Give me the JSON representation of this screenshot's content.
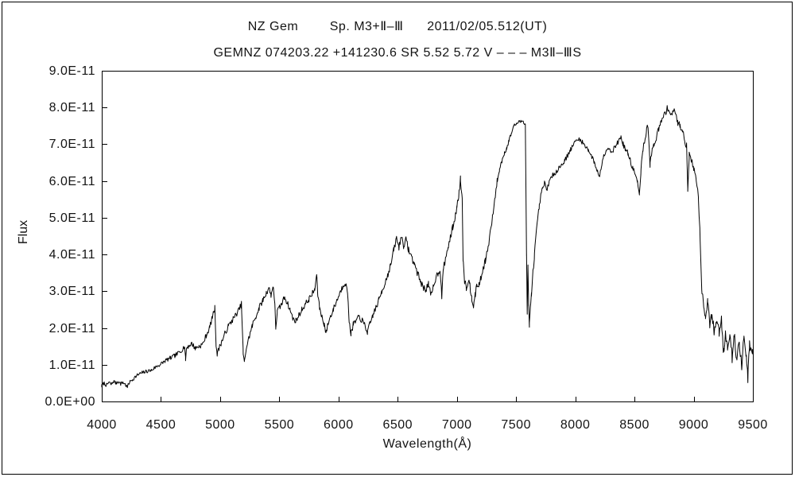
{
  "header": {
    "title_line1": "NZ Gem        Sp. M3+Ⅱ–Ⅲ      2011/02/05.512(UT)",
    "title_line2": "GEMNZ 074203.22 +141230.6 SR 5.52 5.72 V – – – M3Ⅱ–ⅢS"
  },
  "chart_data": {
    "type": "line",
    "title": "NZ Gem  Sp. M3+II-III  2011/02/05.512(UT)",
    "subtitle": "GEMNZ 074203.22 +141230.6 SR 5.52 5.72 V --- M3II-IIIS",
    "xlabel": "Wavelength(Å)",
    "ylabel": "Flux",
    "xlim": [
      4000,
      9500
    ],
    "ylim": [
      0,
      9e-11
    ],
    "grid": false,
    "legend": "none",
    "x_tick_values": [
      4000,
      4500,
      5000,
      5500,
      6000,
      6500,
      7000,
      7500,
      8000,
      8500,
      9000,
      9500
    ],
    "x_tick_labels": [
      "4000",
      "4500",
      "5000",
      "5500",
      "6000",
      "6500",
      "7000",
      "7500",
      "8000",
      "8500",
      "9000",
      "9500"
    ],
    "y_tick_values": [
      0,
      1e-11,
      2e-11,
      3e-11,
      4e-11,
      5e-11,
      6e-11,
      7e-11,
      8e-11,
      9e-11
    ],
    "y_tick_labels": [
      "0.0E+00",
      "1.0E-11",
      "2.0E-11",
      "3.0E-11",
      "4.0E-11",
      "5.0E-11",
      "6.0E-11",
      "7.0E-11",
      "8.0E-11",
      "9.0E-11"
    ],
    "flux_unit": 1e-11,
    "line_color": "#000000",
    "anchors": [
      [
        4000,
        0.42
      ],
      [
        4020,
        0.5
      ],
      [
        4040,
        0.44
      ],
      [
        4060,
        0.52
      ],
      [
        4080,
        0.46
      ],
      [
        4100,
        0.55
      ],
      [
        4120,
        0.5
      ],
      [
        4140,
        0.55
      ],
      [
        4160,
        0.48
      ],
      [
        4180,
        0.52
      ],
      [
        4200,
        0.46
      ],
      [
        4215,
        0.38
      ],
      [
        4230,
        0.5
      ],
      [
        4260,
        0.6
      ],
      [
        4300,
        0.72
      ],
      [
        4340,
        0.78
      ],
      [
        4380,
        0.82
      ],
      [
        4420,
        0.85
      ],
      [
        4460,
        0.95
      ],
      [
        4500,
        1.02
      ],
      [
        4540,
        1.12
      ],
      [
        4580,
        1.18
      ],
      [
        4620,
        1.25
      ],
      [
        4660,
        1.35
      ],
      [
        4700,
        1.5
      ],
      [
        4708,
        1.15
      ],
      [
        4716,
        1.45
      ],
      [
        4730,
        1.5
      ],
      [
        4760,
        1.58
      ],
      [
        4790,
        1.45
      ],
      [
        4820,
        1.5
      ],
      [
        4850,
        1.55
      ],
      [
        4880,
        1.78
      ],
      [
        4910,
        2.0
      ],
      [
        4935,
        2.3
      ],
      [
        4955,
        2.55
      ],
      [
        4965,
        1.6
      ],
      [
        4975,
        1.28
      ],
      [
        4990,
        1.45
      ],
      [
        5010,
        1.6
      ],
      [
        5040,
        1.85
      ],
      [
        5070,
        2.05
      ],
      [
        5100,
        2.2
      ],
      [
        5130,
        2.35
      ],
      [
        5160,
        2.5
      ],
      [
        5180,
        2.65
      ],
      [
        5195,
        1.3
      ],
      [
        5205,
        1.05
      ],
      [
        5220,
        1.45
      ],
      [
        5245,
        1.75
      ],
      [
        5270,
        2.05
      ],
      [
        5300,
        2.3
      ],
      [
        5330,
        2.55
      ],
      [
        5360,
        2.75
      ],
      [
        5390,
        2.95
      ],
      [
        5410,
        3.1
      ],
      [
        5430,
        2.9
      ],
      [
        5450,
        3.15
      ],
      [
        5462,
        2.6
      ],
      [
        5470,
        2.0
      ],
      [
        5482,
        2.45
      ],
      [
        5500,
        2.55
      ],
      [
        5520,
        2.65
      ],
      [
        5545,
        2.85
      ],
      [
        5565,
        2.7
      ],
      [
        5590,
        2.5
      ],
      [
        5615,
        2.25
      ],
      [
        5640,
        2.2
      ],
      [
        5665,
        2.35
      ],
      [
        5690,
        2.5
      ],
      [
        5720,
        2.65
      ],
      [
        5750,
        2.78
      ],
      [
        5780,
        2.95
      ],
      [
        5800,
        3.05
      ],
      [
        5815,
        3.45
      ],
      [
        5825,
        2.9
      ],
      [
        5840,
        2.55
      ],
      [
        5860,
        2.3
      ],
      [
        5880,
        2.1
      ],
      [
        5895,
        1.86
      ],
      [
        5910,
        2.1
      ],
      [
        5930,
        2.3
      ],
      [
        5955,
        2.5
      ],
      [
        5980,
        2.7
      ],
      [
        6005,
        2.9
      ],
      [
        6030,
        3.1
      ],
      [
        6055,
        3.25
      ],
      [
        6075,
        3.0
      ],
      [
        6090,
        2.2
      ],
      [
        6105,
        1.85
      ],
      [
        6125,
        2.1
      ],
      [
        6150,
        2.2
      ],
      [
        6175,
        2.3
      ],
      [
        6200,
        2.2
      ],
      [
        6225,
        2.05
      ],
      [
        6245,
        1.88
      ],
      [
        6265,
        2.1
      ],
      [
        6290,
        2.35
      ],
      [
        6315,
        2.55
      ],
      [
        6340,
        2.75
      ],
      [
        6365,
        3.0
      ],
      [
        6390,
        3.2
      ],
      [
        6415,
        3.45
      ],
      [
        6440,
        3.7
      ],
      [
        6465,
        4.1
      ],
      [
        6490,
        4.45
      ],
      [
        6510,
        4.2
      ],
      [
        6530,
        4.5
      ],
      [
        6550,
        4.25
      ],
      [
        6570,
        4.4
      ],
      [
        6590,
        4.15
      ],
      [
        6615,
        3.95
      ],
      [
        6640,
        3.75
      ],
      [
        6665,
        3.5
      ],
      [
        6690,
        3.3
      ],
      [
        6715,
        3.1
      ],
      [
        6735,
        3.05
      ],
      [
        6760,
        3.2
      ],
      [
        6780,
        2.85
      ],
      [
        6800,
        3.1
      ],
      [
        6820,
        3.35
      ],
      [
        6840,
        3.5
      ],
      [
        6858,
        3.6
      ],
      [
        6872,
        2.85
      ],
      [
        6885,
        3.6
      ],
      [
        6905,
        3.9
      ],
      [
        6925,
        4.2
      ],
      [
        6945,
        4.45
      ],
      [
        6965,
        4.75
      ],
      [
        6985,
        5.0
      ],
      [
        7000,
        5.3
      ],
      [
        7015,
        5.6
      ],
      [
        7030,
        6.05
      ],
      [
        7045,
        5.5
      ],
      [
        7052,
        3.9
      ],
      [
        7065,
        3.3
      ],
      [
        7080,
        3.1
      ],
      [
        7095,
        3.3
      ],
      [
        7110,
        3.15
      ],
      [
        7125,
        2.85
      ],
      [
        7140,
        2.65
      ],
      [
        7155,
        2.95
      ],
      [
        7170,
        3.1
      ],
      [
        7185,
        3.2
      ],
      [
        7200,
        3.3
      ],
      [
        7220,
        3.6
      ],
      [
        7240,
        3.85
      ],
      [
        7260,
        4.1
      ],
      [
        7280,
        4.55
      ],
      [
        7300,
        5.0
      ],
      [
        7320,
        5.5
      ],
      [
        7340,
        6.0
      ],
      [
        7360,
        6.3
      ],
      [
        7380,
        6.55
      ],
      [
        7400,
        6.75
      ],
      [
        7420,
        6.9
      ],
      [
        7440,
        7.1
      ],
      [
        7460,
        7.3
      ],
      [
        7480,
        7.5
      ],
      [
        7500,
        7.55
      ],
      [
        7520,
        7.6
      ],
      [
        7540,
        7.62
      ],
      [
        7560,
        7.65
      ],
      [
        7578,
        7.55
      ],
      [
        7588,
        4.0
      ],
      [
        7594,
        2.4
      ],
      [
        7600,
        3.7
      ],
      [
        7606,
        2.6
      ],
      [
        7612,
        2.1
      ],
      [
        7620,
        2.5
      ],
      [
        7630,
        2.9
      ],
      [
        7642,
        3.5
      ],
      [
        7655,
        4.0
      ],
      [
        7668,
        4.5
      ],
      [
        7682,
        4.9
      ],
      [
        7695,
        5.3
      ],
      [
        7710,
        5.6
      ],
      [
        7725,
        5.8
      ],
      [
        7740,
        5.95
      ],
      [
        7755,
        5.75
      ],
      [
        7770,
        5.9
      ],
      [
        7790,
        6.05
      ],
      [
        7810,
        6.15
      ],
      [
        7835,
        6.25
      ],
      [
        7860,
        6.35
      ],
      [
        7885,
        6.45
      ],
      [
        7910,
        6.55
      ],
      [
        7935,
        6.7
      ],
      [
        7960,
        6.85
      ],
      [
        7985,
        7.0
      ],
      [
        8010,
        7.1
      ],
      [
        8035,
        7.15
      ],
      [
        8060,
        7.05
      ],
      [
        8085,
        6.95
      ],
      [
        8110,
        6.85
      ],
      [
        8135,
        6.7
      ],
      [
        8160,
        6.5
      ],
      [
        8185,
        6.3
      ],
      [
        8205,
        6.1
      ],
      [
        8220,
        6.4
      ],
      [
        8240,
        6.7
      ],
      [
        8260,
        6.85
      ],
      [
        8280,
        6.9
      ],
      [
        8300,
        6.8
      ],
      [
        8320,
        6.85
      ],
      [
        8340,
        6.95
      ],
      [
        8360,
        7.05
      ],
      [
        8385,
        7.2
      ],
      [
        8405,
        7.0
      ],
      [
        8425,
        6.85
      ],
      [
        8445,
        6.75
      ],
      [
        8465,
        6.55
      ],
      [
        8485,
        6.35
      ],
      [
        8505,
        6.2
      ],
      [
        8525,
        5.95
      ],
      [
        8542,
        5.6
      ],
      [
        8555,
        6.3
      ],
      [
        8570,
        6.8
      ],
      [
        8585,
        7.1
      ],
      [
        8600,
        7.35
      ],
      [
        8615,
        7.5
      ],
      [
        8632,
        6.45
      ],
      [
        8648,
        6.8
      ],
      [
        8665,
        7.0
      ],
      [
        8685,
        7.2
      ],
      [
        8705,
        7.4
      ],
      [
        8725,
        7.6
      ],
      [
        8745,
        7.75
      ],
      [
        8765,
        7.9
      ],
      [
        8785,
        8.0
      ],
      [
        8805,
        7.8
      ],
      [
        8825,
        7.9
      ],
      [
        8845,
        7.85
      ],
      [
        8865,
        7.6
      ],
      [
        8885,
        7.5
      ],
      [
        8905,
        7.4
      ],
      [
        8925,
        7.1
      ],
      [
        8940,
        6.95
      ],
      [
        8950,
        5.8
      ],
      [
        8962,
        6.7
      ],
      [
        8980,
        6.55
      ],
      [
        9000,
        6.35
      ],
      [
        9020,
        6.1
      ],
      [
        9040,
        5.6
      ],
      [
        9055,
        4.4
      ],
      [
        9068,
        3.1
      ],
      [
        9085,
        2.6
      ],
      [
        9100,
        2.3
      ],
      [
        9118,
        2.75
      ],
      [
        9135,
        2.1
      ],
      [
        9155,
        2.35
      ],
      [
        9175,
        1.85
      ],
      [
        9195,
        2.2
      ],
      [
        9215,
        1.9
      ],
      [
        9235,
        2.25
      ],
      [
        9252,
        1.3
      ],
      [
        9268,
        1.9
      ],
      [
        9285,
        1.5
      ],
      [
        9305,
        1.9
      ],
      [
        9325,
        1.2
      ],
      [
        9345,
        1.8
      ],
      [
        9365,
        1.1
      ],
      [
        9385,
        1.6
      ],
      [
        9405,
        0.95
      ],
      [
        9425,
        1.7
      ],
      [
        9445,
        1.2
      ],
      [
        9458,
        0.6
      ],
      [
        9472,
        1.5
      ],
      [
        9498,
        1.35
      ]
    ],
    "noise_profile": [
      [
        4000,
        0.05
      ],
      [
        4400,
        0.05
      ],
      [
        4800,
        0.07
      ],
      [
        5200,
        0.08
      ],
      [
        5600,
        0.08
      ],
      [
        6000,
        0.08
      ],
      [
        6400,
        0.09
      ],
      [
        6700,
        0.1
      ],
      [
        7000,
        0.09
      ],
      [
        7150,
        0.12
      ],
      [
        7400,
        0.06
      ],
      [
        7520,
        0.04
      ],
      [
        7650,
        0.1
      ],
      [
        7800,
        0.07
      ],
      [
        8100,
        0.06
      ],
      [
        8400,
        0.07
      ],
      [
        8700,
        0.1
      ],
      [
        8950,
        0.09
      ],
      [
        9100,
        0.12
      ],
      [
        9250,
        0.15
      ],
      [
        9500,
        0.18
      ]
    ],
    "noise_seed": 7,
    "sample_step_angstrom": 6
  }
}
